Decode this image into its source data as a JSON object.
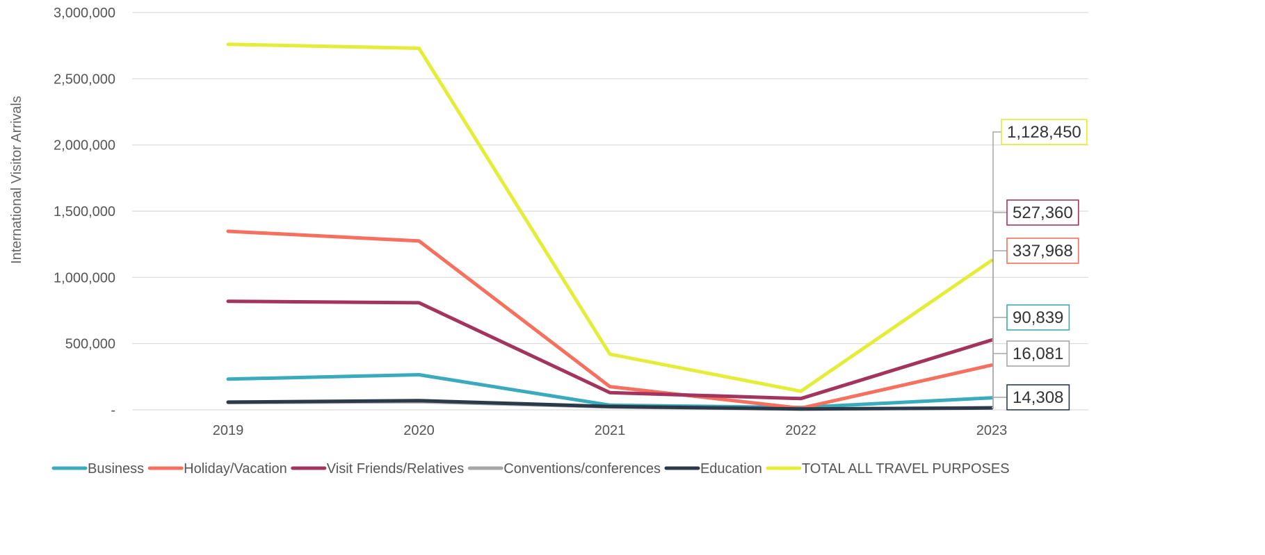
{
  "chart_data": {
    "type": "line",
    "title": "",
    "xlabel": "",
    "ylabel": "International Visitor Arrivals",
    "categories": [
      "2019",
      "2020",
      "2021",
      "2022",
      "2023"
    ],
    "ylim": [
      0,
      3000000
    ],
    "yticks": [
      {
        "value": 0,
        "label": "-"
      },
      {
        "value": 500000,
        "label": "500,000"
      },
      {
        "value": 1000000,
        "label": "1,000,000"
      },
      {
        "value": 1500000,
        "label": "1,500,000"
      },
      {
        "value": 2000000,
        "label": "2,000,000"
      },
      {
        "value": 2500000,
        "label": "2,500,000"
      },
      {
        "value": 3000000,
        "label": "3,000,000"
      }
    ],
    "grid": true,
    "legend_position": "bottom",
    "series": [
      {
        "name": "Business",
        "color": "#3aabbc",
        "values": [
          232000,
          265000,
          35000,
          18000,
          90839
        ],
        "end_label": "90,839"
      },
      {
        "name": "Holiday/Vacation",
        "color": "#f5705e",
        "values": [
          1348000,
          1275000,
          175000,
          12000,
          337968
        ],
        "end_label": "337,968"
      },
      {
        "name": "Visit Friends/Relatives",
        "color": "#a3345e",
        "values": [
          820000,
          808000,
          130000,
          85000,
          527360
        ],
        "end_label": "527,360"
      },
      {
        "name": "Conventions/conferences",
        "color": "#a6a6a6",
        "values": [
          55000,
          62000,
          22000,
          5000,
          16081
        ],
        "end_label": "16,081"
      },
      {
        "name": "Education",
        "color": "#2b3a4a",
        "values": [
          58000,
          70000,
          25000,
          7000,
          14308
        ],
        "end_label": "14,308"
      },
      {
        "name": "TOTAL ALL TRAVEL PURPOSES",
        "color": "#e3ed3a",
        "values": [
          2760000,
          2730000,
          420000,
          140000,
          1128450
        ],
        "end_label": "1,128,450"
      }
    ]
  }
}
